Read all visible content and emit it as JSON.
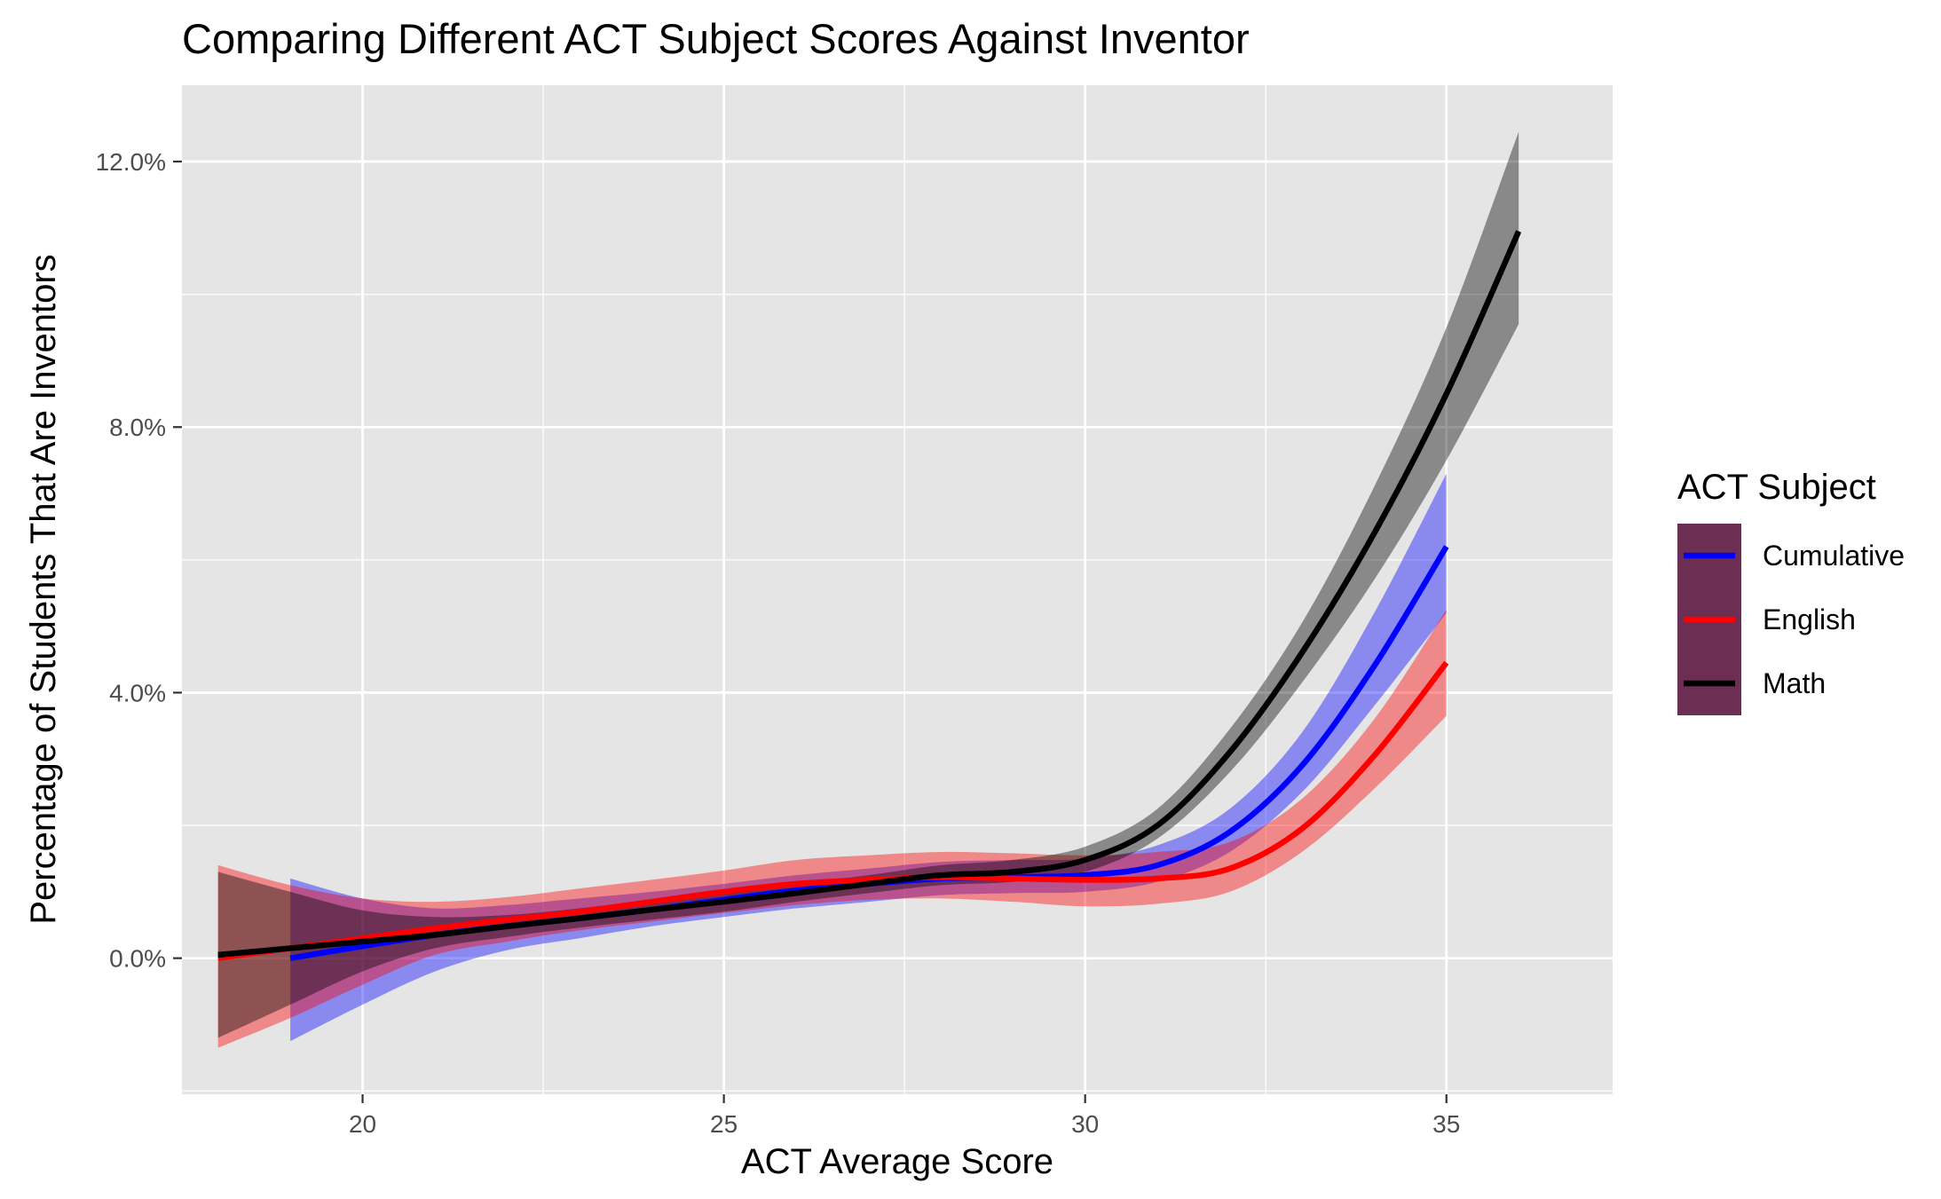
{
  "chart_data": {
    "type": "line",
    "title": "Comparing Different ACT Subject Scores Against Inventor",
    "xlabel": "ACT Average Score",
    "ylabel": "Percentage of Students That Are Inventors",
    "xlim": [
      17.5,
      37.3
    ],
    "ylim": [
      -0.0205,
      0.1315
    ],
    "x_ticks": [
      20,
      25,
      30,
      35
    ],
    "x_tick_labels": [
      "20",
      "25",
      "30",
      "35"
    ],
    "y_ticks": [
      0,
      0.04,
      0.08,
      0.12
    ],
    "y_tick_labels": [
      "0.0%",
      "4.0%",
      "8.0%",
      "12.0%"
    ],
    "grid": true,
    "legend": {
      "title": "ACT Subject",
      "placement": "right",
      "entries": [
        "Cumulative",
        "English",
        "Math"
      ]
    },
    "series": [
      {
        "name": "Cumulative",
        "color": "#0000ff",
        "x": [
          19,
          20,
          21,
          22,
          23,
          24,
          25,
          26,
          27,
          28,
          29,
          30,
          31,
          32,
          33,
          34,
          35
        ],
        "y": [
          0.0,
          0.0018,
          0.0035,
          0.0048,
          0.006,
          0.0073,
          0.0088,
          0.0102,
          0.0112,
          0.012,
          0.0122,
          0.0125,
          0.014,
          0.019,
          0.029,
          0.044,
          0.062
        ],
        "lower": [
          -0.0125,
          -0.007,
          -0.002,
          0.0012,
          0.003,
          0.0048,
          0.0062,
          0.0075,
          0.0085,
          0.0095,
          0.0098,
          0.01,
          0.0115,
          0.016,
          0.025,
          0.038,
          0.052
        ],
        "upper": [
          0.012,
          0.009,
          0.0075,
          0.008,
          0.009,
          0.01,
          0.0112,
          0.0125,
          0.0135,
          0.0145,
          0.0148,
          0.015,
          0.017,
          0.0225,
          0.034,
          0.052,
          0.073
        ]
      },
      {
        "name": "English",
        "color": "#ff0000",
        "x": [
          18,
          19,
          20,
          21,
          22,
          23,
          24,
          25,
          26,
          27,
          28,
          29,
          30,
          31,
          32,
          33,
          34,
          35
        ],
        "y": [
          0.0,
          0.0015,
          0.003,
          0.0045,
          0.0058,
          0.007,
          0.0085,
          0.01,
          0.0112,
          0.0118,
          0.0122,
          0.012,
          0.0118,
          0.012,
          0.0135,
          0.0195,
          0.0305,
          0.0445
        ],
        "lower": [
          -0.0135,
          -0.009,
          -0.004,
          0.0005,
          0.0025,
          0.0042,
          0.0055,
          0.0068,
          0.008,
          0.0088,
          0.009,
          0.0085,
          0.0078,
          0.0082,
          0.01,
          0.016,
          0.0255,
          0.0365
        ],
        "upper": [
          0.014,
          0.011,
          0.009,
          0.0085,
          0.0092,
          0.0105,
          0.0118,
          0.0132,
          0.0148,
          0.0155,
          0.016,
          0.0158,
          0.0155,
          0.016,
          0.0175,
          0.024,
          0.036,
          0.0525
        ]
      },
      {
        "name": "Math",
        "color": "#000000",
        "x": [
          18,
          19,
          20,
          21,
          22,
          23,
          24,
          25,
          26,
          27,
          28,
          29,
          30,
          31,
          32,
          33,
          34,
          35,
          36
        ],
        "y": [
          0.0005,
          0.0015,
          0.0025,
          0.0035,
          0.0048,
          0.006,
          0.0073,
          0.0085,
          0.0098,
          0.0112,
          0.0125,
          0.013,
          0.0148,
          0.02,
          0.031,
          0.046,
          0.064,
          0.085,
          0.1095
        ],
        "lower": [
          -0.012,
          -0.007,
          -0.002,
          0.0015,
          0.0032,
          0.0046,
          0.0058,
          0.007,
          0.0085,
          0.0098,
          0.011,
          0.0115,
          0.013,
          0.018,
          0.028,
          0.0415,
          0.057,
          0.075,
          0.0955
        ],
        "upper": [
          0.013,
          0.01,
          0.0072,
          0.0062,
          0.0065,
          0.0075,
          0.0088,
          0.01,
          0.0112,
          0.0125,
          0.014,
          0.0148,
          0.0168,
          0.0225,
          0.0345,
          0.0505,
          0.071,
          0.095,
          0.1245
        ]
      }
    ]
  }
}
